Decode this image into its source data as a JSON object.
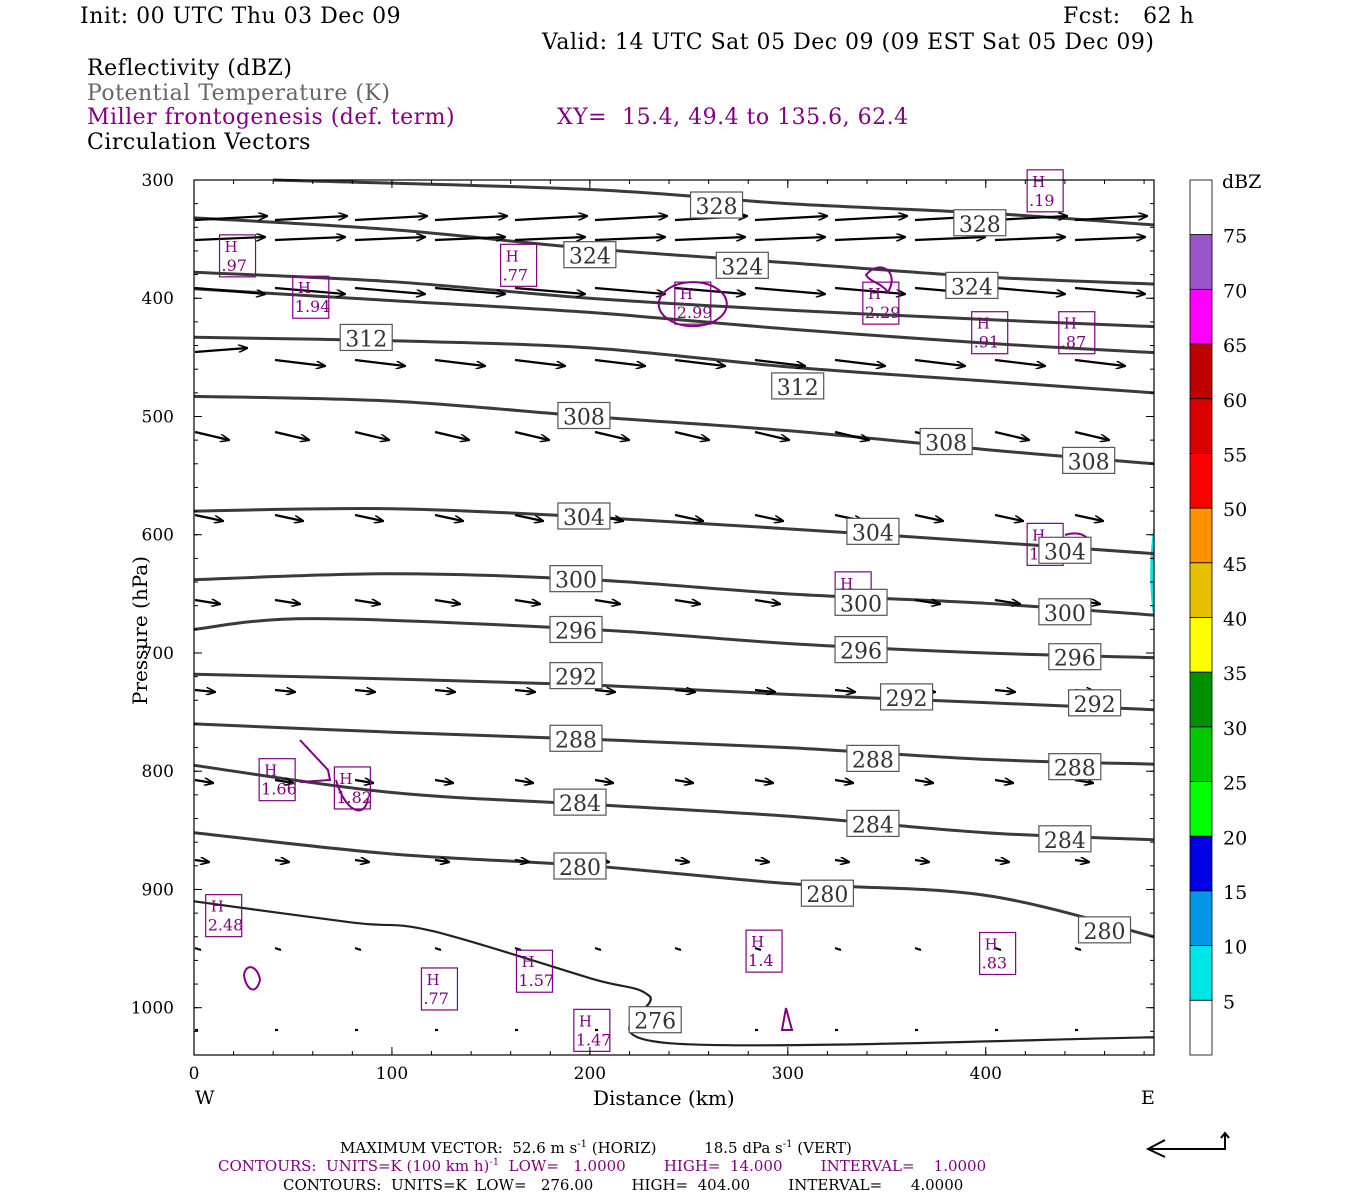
{
  "header": {
    "init": "Init: 00 UTC Thu 03 Dec 09",
    "fcst": "Fcst:   62 h",
    "valid": "Valid: 14 UTC Sat 05 Dec 09 (09 EST Sat 05 Dec 09)"
  },
  "legend": {
    "line1": "Reflectivity (dBZ)",
    "line2": "Potential Temperature (K)",
    "line3": "Miller frontogenesis (def. term)",
    "xy": "XY=  15.4, 49.4 to 135.6, 62.4",
    "line4": "Circulation Vectors"
  },
  "footer": {
    "maxvec_a": "MAXIMUM VECTOR:  52.6 m s",
    "maxvec_b": " (HORIZ)          18.5 dPa s",
    "maxvec_c": " (VERT)",
    "cont1_a": "CONTOURS:  UNITS=K (100 km h)",
    "cont1_b": "  LOW=   1.0000        HIGH=  14.000        INTERVAL=    1.0000",
    "cont2": "CONTOURS:  UNITS=K  LOW=   276.00        HIGH=  404.00        INTERVAL=      4.0000",
    "sup": "-1"
  },
  "colorbar": {
    "unit": "dBZ",
    "levels": [
      "5",
      "10",
      "15",
      "20",
      "25",
      "30",
      "35",
      "40",
      "45",
      "50",
      "55",
      "60",
      "65",
      "70",
      "75"
    ],
    "colors": [
      "#ffffff",
      "#00e5e5",
      "#0095e5",
      "#0000e5",
      "#00ff00",
      "#00c800",
      "#009100",
      "#ffff00",
      "#e5bf00",
      "#ff9100",
      "#ff0000",
      "#d80000",
      "#bf0000",
      "#ff00ff",
      "#9955c9",
      "#ffffff"
    ]
  },
  "chart_data": {
    "type": "cross-section",
    "xlabel": "Distance (km)",
    "ylabel": "Pressure (hPa)",
    "x_ticks": [
      "0",
      "100",
      "200",
      "300",
      "400"
    ],
    "y_ticks": [
      "300",
      "400",
      "500",
      "600",
      "700",
      "800",
      "900",
      "1000"
    ],
    "xlim": [
      0,
      485
    ],
    "ylim": [
      300,
      1040
    ],
    "x_end_labels": {
      "left": "W",
      "right": "E"
    },
    "theta_contours": [
      {
        "label": "328",
        "label_at": [
          [
            264,
            322
          ],
          [
            397,
            337
          ]
        ],
        "points": [
          [
            40,
            300
          ],
          [
            200,
            308
          ],
          [
            300,
            320
          ],
          [
            400,
            328
          ],
          [
            485,
            338
          ]
        ]
      },
      {
        "label": "324",
        "label_at": [
          [
            200,
            364
          ],
          [
            277,
            373
          ],
          [
            393,
            390
          ]
        ],
        "points": [
          [
            0,
            332
          ],
          [
            100,
            342
          ],
          [
            200,
            358
          ],
          [
            300,
            370
          ],
          [
            400,
            382
          ],
          [
            485,
            388
          ]
        ]
      },
      {
        "label": "",
        "points": [
          [
            0,
            378
          ],
          [
            100,
            386
          ],
          [
            200,
            400
          ],
          [
            300,
            410
          ],
          [
            400,
            418
          ],
          [
            485,
            424
          ]
        ]
      },
      {
        "label": "",
        "points": [
          [
            0,
            392
          ],
          [
            100,
            402
          ],
          [
            200,
            412
          ],
          [
            300,
            426
          ],
          [
            400,
            438
          ],
          [
            485,
            446
          ]
        ]
      },
      {
        "label": "312",
        "label_at": [
          [
            87,
            434
          ],
          [
            305,
            475
          ]
        ],
        "points": [
          [
            0,
            433
          ],
          [
            100,
            436
          ],
          [
            200,
            442
          ],
          [
            300,
            458
          ],
          [
            400,
            470
          ],
          [
            485,
            480
          ]
        ]
      },
      {
        "label": "308",
        "label_at": [
          [
            197,
            500
          ],
          [
            380,
            522
          ],
          [
            452,
            538
          ]
        ],
        "points": [
          [
            0,
            483
          ],
          [
            100,
            487
          ],
          [
            200,
            500
          ],
          [
            300,
            512
          ],
          [
            400,
            528
          ],
          [
            485,
            540
          ]
        ]
      },
      {
        "label": "304",
        "label_at": [
          [
            197,
            585
          ],
          [
            343,
            598
          ],
          [
            440,
            614
          ]
        ],
        "points": [
          [
            0,
            580
          ],
          [
            100,
            578
          ],
          [
            200,
            585
          ],
          [
            300,
            595
          ],
          [
            400,
            606
          ],
          [
            485,
            616
          ]
        ]
      },
      {
        "label": "300",
        "label_at": [
          [
            193,
            638
          ],
          [
            337,
            658
          ],
          [
            440,
            666
          ]
        ],
        "points": [
          [
            0,
            638
          ],
          [
            100,
            633
          ],
          [
            200,
            638
          ],
          [
            300,
            650
          ],
          [
            400,
            658
          ],
          [
            485,
            668
          ]
        ]
      },
      {
        "label": "296",
        "label_at": [
          [
            193,
            681
          ],
          [
            337,
            698
          ],
          [
            445,
            704
          ]
        ],
        "points": [
          [
            0,
            680
          ],
          [
            60,
            671
          ],
          [
            200,
            680
          ],
          [
            300,
            692
          ],
          [
            400,
            700
          ],
          [
            485,
            704
          ]
        ]
      },
      {
        "label": "292",
        "label_at": [
          [
            193,
            720
          ],
          [
            360,
            738
          ],
          [
            455,
            743
          ]
        ],
        "points": [
          [
            0,
            718
          ],
          [
            100,
            722
          ],
          [
            200,
            727
          ],
          [
            300,
            735
          ],
          [
            400,
            742
          ],
          [
            485,
            748
          ]
        ]
      },
      {
        "label": "288",
        "label_at": [
          [
            193,
            773
          ],
          [
            343,
            790
          ],
          [
            445,
            797
          ]
        ],
        "points": [
          [
            0,
            760
          ],
          [
            100,
            767
          ],
          [
            200,
            773
          ],
          [
            300,
            780
          ],
          [
            400,
            790
          ],
          [
            485,
            794
          ]
        ]
      },
      {
        "label": "284",
        "label_at": [
          [
            195,
            827
          ],
          [
            343,
            845
          ],
          [
            440,
            858
          ]
        ],
        "points": [
          [
            0,
            795
          ],
          [
            100,
            818
          ],
          [
            200,
            828
          ],
          [
            300,
            838
          ],
          [
            400,
            852
          ],
          [
            485,
            858
          ]
        ]
      },
      {
        "label": "280",
        "label_at": [
          [
            195,
            881
          ],
          [
            320,
            904
          ],
          [
            460,
            935
          ]
        ],
        "points": [
          [
            0,
            852
          ],
          [
            100,
            870
          ],
          [
            200,
            880
          ],
          [
            300,
            895
          ],
          [
            400,
            905
          ],
          [
            485,
            940
          ]
        ]
      },
      {
        "label": "276",
        "label_at": [
          [
            233,
            1011
          ]
        ],
        "points": [
          [
            0,
            910
          ],
          [
            80,
            928
          ],
          [
            120,
            935
          ],
          [
            200,
            975
          ],
          [
            230,
            990
          ],
          [
            240,
            1030
          ],
          [
            485,
            1025
          ]
        ]
      }
    ],
    "frontogenesis_maxima": [
      {
        "x": 22,
        "p": 365,
        "value": ".97"
      },
      {
        "x": 59,
        "p": 400,
        "value": "1.94"
      },
      {
        "x": 164,
        "p": 373,
        "value": ".77"
      },
      {
        "x": 252,
        "p": 405,
        "value": "2.99"
      },
      {
        "x": 347,
        "p": 405,
        "value": "2.29"
      },
      {
        "x": 402,
        "p": 430,
        "value": ".91"
      },
      {
        "x": 446,
        "p": 430,
        "value": ".87"
      },
      {
        "x": 430,
        "p": 609,
        "value": "1.04"
      },
      {
        "x": 333,
        "p": 650,
        "value": ".90"
      },
      {
        "x": 42,
        "p": 808,
        "value": "1.66"
      },
      {
        "x": 80,
        "p": 815,
        "value": "1.82"
      },
      {
        "x": 15,
        "p": 923,
        "value": "2.48"
      },
      {
        "x": 124,
        "p": 985,
        "value": ".77"
      },
      {
        "x": 172,
        "p": 970,
        "value": "1.57"
      },
      {
        "x": 201,
        "p": 1020,
        "value": "1.47"
      },
      {
        "x": 288,
        "p": 953,
        "value": "1.4"
      },
      {
        "x": 406,
        "p": 955,
        "value": ".83"
      },
      {
        "x": 430,
        "p": 310,
        "value": ".19"
      }
    ],
    "max_vector_horiz": "52.6 m s-1",
    "max_vector_vert": "18.5 dPa s-1",
    "theta_contour_interval": 4,
    "theta_low": 276,
    "theta_high": 404,
    "frontogenesis_low": 1,
    "frontogenesis_high": 14,
    "frontogenesis_interval": 1
  }
}
